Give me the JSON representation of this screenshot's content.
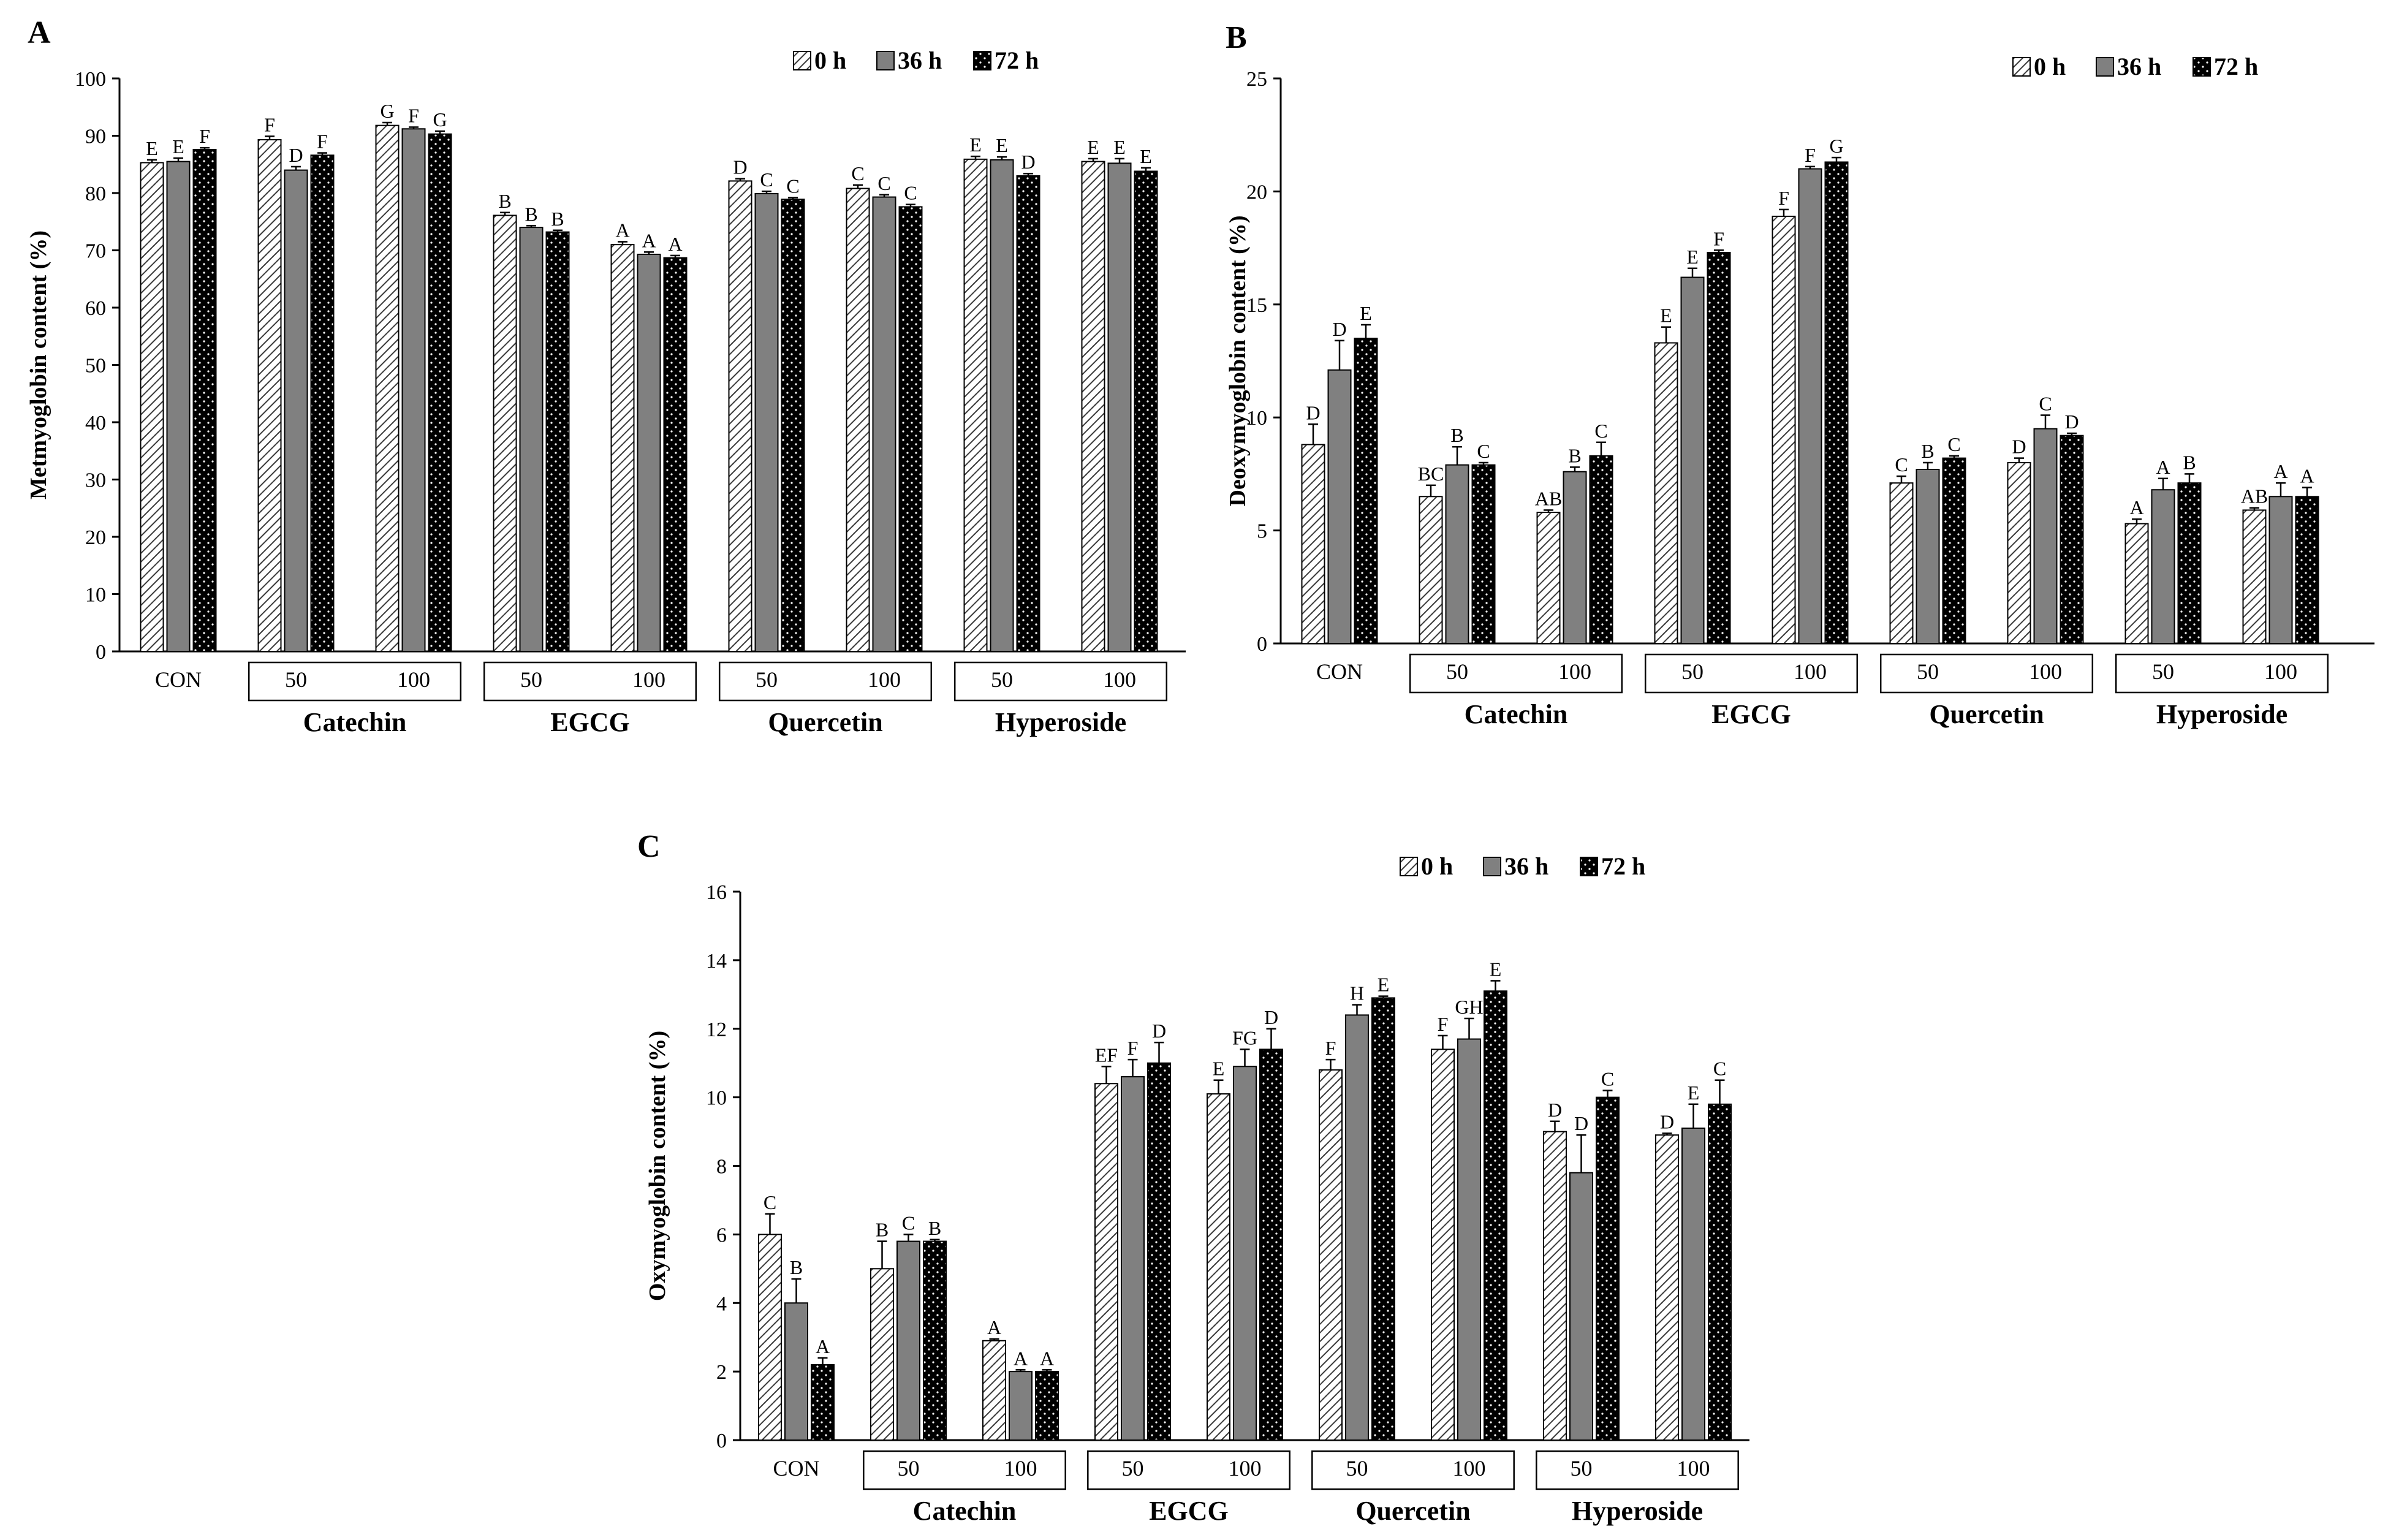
{
  "chart_data": [
    {
      "panel": "A",
      "type": "bar",
      "ylabel": "Metmyoglobin content (%)",
      "ylim": [
        0,
        100
      ],
      "yticks": [
        0,
        10,
        20,
        30,
        40,
        50,
        60,
        70,
        80,
        90,
        100
      ],
      "categories": [
        "CON",
        "50",
        "100",
        "50",
        "100",
        "50",
        "100",
        "50",
        "100"
      ],
      "groups": [
        {
          "label": "Catechin",
          "from": 1,
          "to": 2
        },
        {
          "label": "EGCG",
          "from": 3,
          "to": 4
        },
        {
          "label": "Quercetin",
          "from": 5,
          "to": 6
        },
        {
          "label": "Hyperoside",
          "from": 7,
          "to": 8
        }
      ],
      "legend": [
        "0 h",
        "36 h",
        "72 h"
      ],
      "series": [
        {
          "name": "0 h",
          "values": [
            85.3,
            89.3,
            91.8,
            76.1,
            71.0,
            82.1,
            80.8,
            85.9,
            85.5
          ],
          "errors": [
            0.5,
            0.6,
            0.5,
            0.5,
            0.5,
            0.4,
            0.6,
            0.5,
            0.5
          ],
          "labels": [
            "E",
            "F",
            "G",
            "B",
            "A",
            "D",
            "C",
            "E",
            "E"
          ]
        },
        {
          "name": "36 h",
          "values": [
            85.5,
            84.0,
            91.2,
            74.0,
            69.3,
            79.9,
            79.3,
            85.8,
            85.2
          ],
          "errors": [
            0.6,
            0.6,
            0.3,
            0.3,
            0.4,
            0.4,
            0.4,
            0.5,
            0.8
          ],
          "labels": [
            "E",
            "D",
            "F",
            "B",
            "A",
            "C",
            "C",
            "E",
            "E"
          ]
        },
        {
          "name": "72 h",
          "values": [
            87.6,
            86.6,
            90.3,
            73.2,
            68.7,
            78.9,
            77.6,
            83.0,
            83.8
          ],
          "errors": [
            0.3,
            0.4,
            0.5,
            0.3,
            0.4,
            0.3,
            0.4,
            0.4,
            0.6
          ],
          "labels": [
            "F",
            "F",
            "G",
            "B",
            "A",
            "C",
            "C",
            "D",
            "E"
          ]
        }
      ]
    },
    {
      "panel": "B",
      "type": "bar",
      "ylabel": "Deoxymyoglobin content (%)",
      "ylim": [
        0,
        25
      ],
      "yticks": [
        0,
        5,
        10,
        15,
        20,
        25
      ],
      "categories": [
        "CON",
        "50",
        "100",
        "50",
        "100",
        "50",
        "100",
        "50",
        "100"
      ],
      "groups": [
        {
          "label": "Catechin",
          "from": 1,
          "to": 2
        },
        {
          "label": "EGCG",
          "from": 3,
          "to": 4
        },
        {
          "label": "Quercetin",
          "from": 5,
          "to": 6
        },
        {
          "label": "Hyperoside",
          "from": 7,
          "to": 8
        }
      ],
      "legend": [
        "0 h",
        "36 h",
        "72 h"
      ],
      "series": [
        {
          "name": "0 h",
          "values": [
            8.8,
            6.5,
            5.8,
            13.3,
            18.9,
            7.1,
            8.0,
            5.3,
            5.9
          ],
          "errors": [
            0.9,
            0.5,
            0.1,
            0.7,
            0.3,
            0.3,
            0.2,
            0.2,
            0.1
          ],
          "labels": [
            "D",
            "BC",
            "AB",
            "E",
            "F",
            "C",
            "D",
            "A",
            "AB"
          ]
        },
        {
          "name": "36 h",
          "values": [
            12.1,
            7.9,
            7.6,
            16.2,
            21.0,
            7.7,
            9.5,
            6.8,
            6.5
          ],
          "errors": [
            1.3,
            0.8,
            0.2,
            0.4,
            0.1,
            0.3,
            0.6,
            0.5,
            0.6
          ],
          "labels": [
            "D",
            "B",
            "B",
            "E",
            "F",
            "B",
            "C",
            "A",
            "A"
          ]
        },
        {
          "name": "72 h",
          "values": [
            13.5,
            7.9,
            8.3,
            17.3,
            21.3,
            8.2,
            9.2,
            7.1,
            6.5
          ],
          "errors": [
            0.6,
            0.1,
            0.6,
            0.1,
            0.2,
            0.1,
            0.1,
            0.4,
            0.4
          ],
          "labels": [
            "E",
            "C",
            "C",
            "F",
            "G",
            "C",
            "D",
            "B",
            "A"
          ]
        }
      ]
    },
    {
      "panel": "C",
      "type": "bar",
      "ylabel": "Oxymyoglobin content (%)",
      "ylim": [
        0,
        16
      ],
      "yticks": [
        0,
        2,
        4,
        6,
        8,
        10,
        12,
        14,
        16
      ],
      "categories": [
        "CON",
        "50",
        "100",
        "50",
        "100",
        "50",
        "100",
        "50",
        "100"
      ],
      "groups": [
        {
          "label": "Catechin",
          "from": 1,
          "to": 2
        },
        {
          "label": "EGCG",
          "from": 3,
          "to": 4
        },
        {
          "label": "Quercetin",
          "from": 5,
          "to": 6
        },
        {
          "label": "Hyperoside",
          "from": 7,
          "to": 8
        }
      ],
      "legend": [
        "0 h",
        "36 h",
        "72 h"
      ],
      "series": [
        {
          "name": "0 h",
          "values": [
            6.0,
            5.0,
            2.9,
            10.4,
            10.1,
            10.8,
            11.4,
            9.0,
            8.9
          ],
          "errors": [
            0.6,
            0.8,
            0.05,
            0.5,
            0.4,
            0.3,
            0.4,
            0.3,
            0.05
          ],
          "labels": [
            "C",
            "B",
            "A",
            "EF",
            "E",
            "F",
            "F",
            "D",
            "D"
          ]
        },
        {
          "name": "36 h",
          "values": [
            4.0,
            5.8,
            2.0,
            10.6,
            10.9,
            12.4,
            11.7,
            7.8,
            9.1
          ],
          "errors": [
            0.7,
            0.2,
            0.05,
            0.5,
            0.5,
            0.3,
            0.6,
            1.1,
            0.7
          ],
          "labels": [
            "B",
            "C",
            "A",
            "F",
            "FG",
            "H",
            "GH",
            "D",
            "E"
          ]
        },
        {
          "name": "72 h",
          "values": [
            2.2,
            5.8,
            2.0,
            11.0,
            11.4,
            12.9,
            13.1,
            10.0,
            9.8
          ],
          "errors": [
            0.2,
            0.05,
            0.05,
            0.6,
            0.6,
            0.05,
            0.3,
            0.2,
            0.7
          ],
          "labels": [
            "A",
            "B",
            "A",
            "D",
            "D",
            "E",
            "E",
            "C",
            "C"
          ]
        }
      ]
    }
  ]
}
